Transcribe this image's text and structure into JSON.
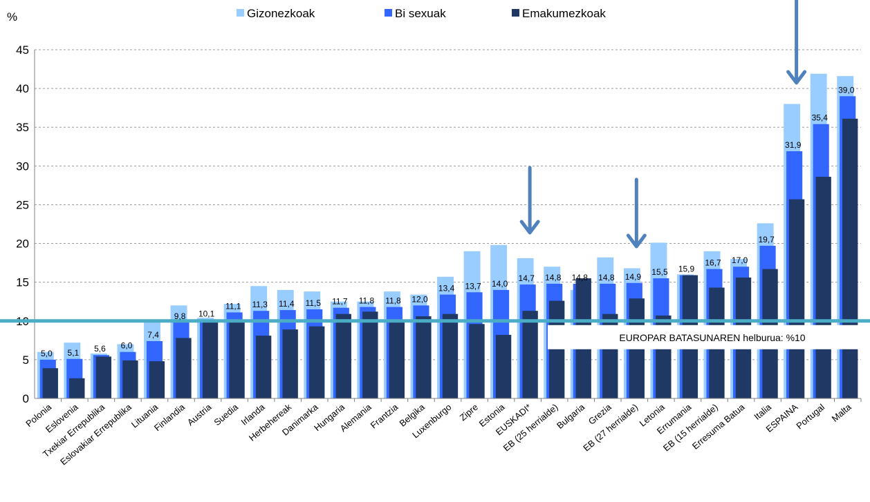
{
  "chart_data": {
    "type": "bar",
    "unit_label": "%",
    "ylim": [
      0,
      45
    ],
    "yticks": [
      0,
      5,
      10,
      15,
      20,
      25,
      30,
      35,
      40,
      45
    ],
    "grid": true,
    "legend_position": "top",
    "categories": [
      "Polonia",
      "Eslovenia",
      "Txekiar Errepublika",
      "Eslovakiar Errepublika",
      "Lituania",
      "Finlandia",
      "Austria",
      "Suedia",
      "Irlanda",
      "Herbehereak",
      "Danimarka",
      "Hungaria",
      "Alemania",
      "Frantzia",
      "Belgika",
      "Luxenburgo",
      "Zipre",
      "Estonia",
      "EUSKADI*",
      "EB (25 herrialde)",
      "Bulgaria",
      "Grezia",
      "EB (27 herrialde)",
      "Letonia",
      "Errumania",
      "EB (15 herrialde)",
      "Erresuma Batua",
      "Italia",
      "ESPAINA",
      "Portugal",
      "Malta"
    ],
    "series": [
      {
        "name": "Gizonezkoak",
        "color": "#99CCFF",
        "values": [
          6.0,
          7.2,
          5.8,
          7.0,
          10.0,
          12.0,
          10.4,
          12.2,
          14.5,
          14.0,
          13.8,
          12.5,
          12.5,
          13.8,
          13.4,
          15.7,
          19.0,
          19.8,
          18.1,
          17.0,
          14.0,
          18.2,
          16.8,
          20.1,
          16.0,
          19.0,
          18.0,
          22.6,
          38.0,
          41.9,
          41.6
        ]
      },
      {
        "name": "Bi sexuak",
        "color": "#3366FF",
        "values": [
          5.0,
          5.1,
          5.6,
          6.0,
          7.4,
          9.8,
          10.1,
          11.1,
          11.3,
          11.4,
          11.5,
          11.7,
          11.8,
          11.8,
          12.0,
          13.4,
          13.7,
          14.0,
          14.7,
          14.8,
          14.8,
          14.8,
          14.9,
          15.5,
          15.9,
          16.7,
          17.0,
          19.7,
          31.9,
          35.4,
          39.0
        ]
      },
      {
        "name": "Emakumezkoak",
        "color": "#1F3864",
        "values": [
          3.9,
          2.6,
          5.4,
          4.9,
          4.8,
          7.8,
          9.9,
          9.9,
          8.1,
          8.9,
          9.3,
          10.9,
          11.2,
          9.8,
          10.6,
          10.9,
          9.6,
          8.2,
          11.3,
          12.6,
          15.5,
          10.9,
          12.9,
          10.7,
          15.9,
          14.3,
          15.6,
          16.7,
          25.7,
          28.6,
          36.1
        ]
      }
    ],
    "data_labels": [
      "5,0",
      "5,1",
      "5,6",
      "6,0",
      "7,4",
      "9,8",
      "10,1",
      "11,1",
      "11,3",
      "11,4",
      "11,5",
      "11,7",
      "11,8",
      "11,8",
      "12,0",
      "13,4",
      "13,7",
      "14,0",
      "14,7",
      "14,8",
      "14,8",
      "14,8",
      "14,9",
      "15,5",
      "15,9",
      "16,7",
      "17,0",
      "19,7",
      "31,9",
      "35,4",
      "39,0"
    ],
    "target": {
      "value": 10,
      "label": "EUROPAR BATASUNAREN helburua:  %10",
      "color": "#4BACC6"
    },
    "highlight_arrows": [
      "EUSKADI*",
      "EB (27 herrialde)",
      "ESPAINA"
    ],
    "arrow_color": "#4F81BD"
  }
}
